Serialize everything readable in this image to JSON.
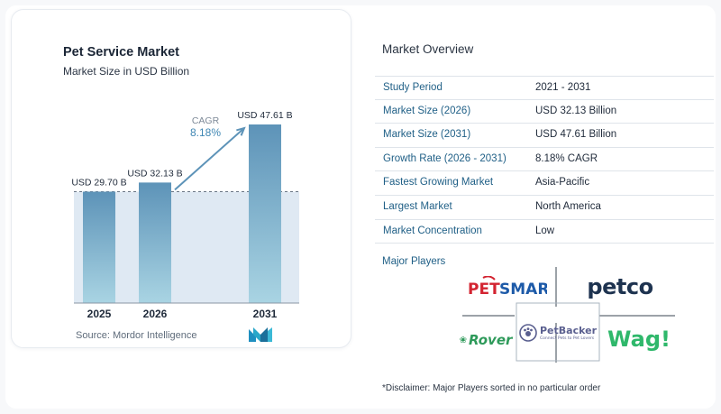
{
  "chart_data": {
    "type": "bar",
    "title": "Pet Service Market",
    "subtitle": "Market Size in USD Billion",
    "categories": [
      "2025",
      "2026",
      "2031"
    ],
    "values": [
      29.7,
      32.13,
      47.61
    ],
    "value_labels": [
      "USD 29.70 B",
      "USD 32.13 B",
      "USD 47.61 B"
    ],
    "annotation": {
      "label": "CAGR",
      "value": "8.18%"
    },
    "bar_color_top": "#5d93b8",
    "bar_color_bottom": "#a9d4e3",
    "xlabel": "",
    "ylabel": ""
  },
  "source": "Source:  Mordor Intelligence",
  "overview": {
    "title": "Market Overview",
    "rows": [
      {
        "label": "Study Period",
        "value": "2021 - 2031"
      },
      {
        "label": "Market Size (2026)",
        "value": "USD 32.13 Billion"
      },
      {
        "label": "Market Size (2031)",
        "value": "USD 47.61 Billion"
      },
      {
        "label": "Growth Rate (2026 - 2031)",
        "value": "8.18% CAGR"
      },
      {
        "label": "Fastest Growing Market",
        "value": "Asia-Pacific"
      },
      {
        "label": "Largest Market",
        "value": "North America"
      },
      {
        "label": "Market Concentration",
        "value": "Low"
      }
    ]
  },
  "players": {
    "title": "Major Players",
    "logos": {
      "petsmart": {
        "part1": "PET",
        "part2": "SMART"
      },
      "petco": "petco",
      "rover": "Rover",
      "petbacker": {
        "name": "PetBacker",
        "tagline": "Connect Pets to Pet Lovers"
      },
      "wag": "Wag!"
    }
  },
  "disclaimer": "*Disclaimer: Major Players sorted in no particular order"
}
